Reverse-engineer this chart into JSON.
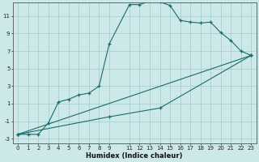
{
  "xlabel": "Humidex (Indice chaleur)",
  "bg_color": "#cde8e8",
  "grid_color": "#aacfcf",
  "line_color": "#1a6b6b",
  "xlim": [
    -0.5,
    23.5
  ],
  "ylim": [
    -3.5,
    12.5
  ],
  "xticks": [
    0,
    1,
    2,
    3,
    4,
    5,
    6,
    7,
    8,
    9,
    11,
    12,
    13,
    14,
    15,
    16,
    17,
    18,
    19,
    20,
    21,
    22,
    23
  ],
  "xlabels": [
    "0",
    "1",
    "2",
    "3",
    "4",
    "5",
    "6",
    "7",
    "8",
    "9",
    "11",
    "12",
    "13",
    "14",
    "15",
    "16",
    "17",
    "18",
    "19",
    "20",
    "21",
    "22",
    "23"
  ],
  "yticks": [
    -3,
    -1,
    1,
    3,
    5,
    7,
    9,
    11
  ],
  "series0_x": [
    0,
    1,
    2,
    3,
    4,
    5,
    6,
    7,
    8,
    9,
    11,
    12,
    13,
    14,
    15,
    16,
    17,
    18,
    19,
    20,
    21,
    22,
    23
  ],
  "series0_y": [
    -2.5,
    -2.5,
    -2.5,
    -1.2,
    1.2,
    1.5,
    2.0,
    2.2,
    3.0,
    7.8,
    12.3,
    12.3,
    12.7,
    12.6,
    12.2,
    10.5,
    10.3,
    10.2,
    10.3,
    9.1,
    8.2,
    7.0,
    6.5
  ],
  "series1_x": [
    0,
    23
  ],
  "series1_y": [
    -2.5,
    6.5
  ],
  "series2_x": [
    0,
    9,
    14,
    23
  ],
  "series2_y": [
    -2.5,
    -0.5,
    0.5,
    6.5
  ],
  "tick_fontsize": 5,
  "xlabel_fontsize": 6
}
